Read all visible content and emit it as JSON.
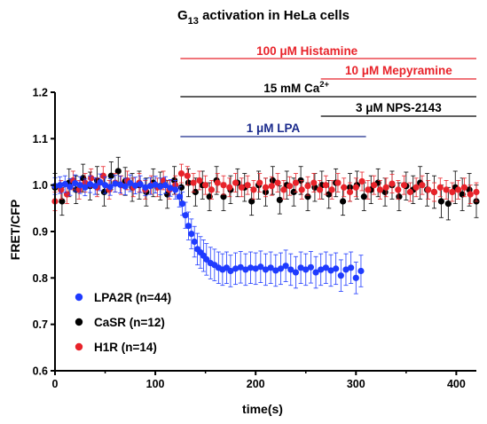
{
  "chart_data": {
    "type": "scatter",
    "title": {
      "prefix": "G",
      "subscript": "13",
      "suffix": " activation in HeLa cells"
    },
    "xlabel": "time(s)",
    "ylabel": "FRET/CFP",
    "xlim": [
      0,
      420
    ],
    "ylim": [
      0.6,
      1.2
    ],
    "x_ticks": [
      0,
      100,
      200,
      300,
      400
    ],
    "y_ticks": [
      0.6,
      0.7,
      0.8,
      0.9,
      1.0,
      1.1,
      1.2
    ],
    "y_tick_labels": [
      "0.6",
      "0.7",
      "0.8",
      "0.9",
      "1.0",
      "1.1",
      "1.2"
    ],
    "grid": false,
    "legend_position": "bottom-left",
    "annotations": [
      {
        "text": "100 μM Histamine",
        "color": "#e8232a",
        "x_start": 125,
        "x_end": 420
      },
      {
        "text": "10 μM Mepyramine",
        "color": "#e8232a",
        "x_start": 265,
        "x_end": 420
      },
      {
        "text_main": "15 mM Ca",
        "text_sup": "2+",
        "color": "#000000",
        "x_start": 125,
        "x_end": 420
      },
      {
        "text": "3 μM NPS-2143",
        "color": "#000000",
        "x_start": 265,
        "x_end": 420
      },
      {
        "text": "1 μM LPA",
        "color": "#1a2a8c",
        "x_start": 125,
        "x_end": 310
      }
    ],
    "series": [
      {
        "name": "LPA2R (n=44)",
        "color": "#1f3bff",
        "x": [
          0,
          5,
          10,
          15,
          20,
          25,
          30,
          35,
          40,
          45,
          50,
          55,
          60,
          65,
          70,
          75,
          80,
          85,
          90,
          95,
          100,
          105,
          110,
          115,
          120,
          124,
          127,
          130,
          133,
          136,
          139,
          142,
          145,
          148,
          151,
          155,
          159,
          163,
          167,
          171,
          175,
          180,
          185,
          190,
          195,
          200,
          205,
          210,
          215,
          220,
          225,
          230,
          235,
          240,
          245,
          250,
          255,
          260,
          265,
          270,
          275,
          280,
          285,
          290,
          295,
          300,
          305
        ],
        "y": [
          0.998,
          1.0,
          1.002,
          0.996,
          1.004,
          1.0,
          0.995,
          1.002,
          0.998,
          1.006,
          1.0,
          0.996,
          1.003,
          1.001,
          0.997,
          1.004,
          0.999,
          1.002,
          0.995,
          0.998,
          1.001,
          0.997,
          1.0,
          0.994,
          0.99,
          0.975,
          0.96,
          0.935,
          0.912,
          0.895,
          0.878,
          0.862,
          0.855,
          0.848,
          0.84,
          0.832,
          0.828,
          0.822,
          0.818,
          0.822,
          0.815,
          0.82,
          0.823,
          0.818,
          0.822,
          0.82,
          0.824,
          0.818,
          0.822,
          0.816,
          0.82,
          0.826,
          0.818,
          0.812,
          0.822,
          0.818,
          0.823,
          0.812,
          0.818,
          0.822,
          0.816,
          0.82,
          0.805,
          0.818,
          0.822,
          0.8,
          0.815
        ],
        "err": [
          0.018,
          0.018,
          0.018,
          0.018,
          0.018,
          0.018,
          0.018,
          0.018,
          0.018,
          0.018,
          0.018,
          0.018,
          0.018,
          0.018,
          0.018,
          0.018,
          0.018,
          0.018,
          0.018,
          0.018,
          0.018,
          0.018,
          0.018,
          0.018,
          0.02,
          0.022,
          0.025,
          0.028,
          0.03,
          0.032,
          0.033,
          0.034,
          0.034,
          0.034,
          0.034,
          0.034,
          0.034,
          0.034,
          0.034,
          0.034,
          0.034,
          0.034,
          0.034,
          0.034,
          0.034,
          0.034,
          0.034,
          0.034,
          0.034,
          0.034,
          0.034,
          0.034,
          0.034,
          0.034,
          0.034,
          0.034,
          0.034,
          0.034,
          0.034,
          0.034,
          0.034,
          0.034,
          0.034,
          0.034,
          0.034,
          0.034,
          0.034
        ]
      },
      {
        "name": "CaSR (n=12)",
        "color": "#000000",
        "x": [
          0,
          7,
          14,
          21,
          28,
          35,
          42,
          49,
          56,
          63,
          70,
          77,
          84,
          91,
          98,
          105,
          112,
          119,
          126,
          133,
          140,
          147,
          154,
          161,
          168,
          175,
          182,
          189,
          196,
          203,
          210,
          217,
          224,
          231,
          238,
          245,
          252,
          259,
          266,
          273,
          280,
          287,
          294,
          301,
          308,
          315,
          322,
          329,
          336,
          343,
          350,
          357,
          364,
          371,
          378,
          385,
          392,
          399,
          406,
          413,
          420
        ],
        "y": [
          0.995,
          0.965,
          1.005,
          0.99,
          1.015,
          0.998,
          1.01,
          0.985,
          1.02,
          1.03,
          1.008,
          0.995,
          1.0,
          0.985,
          1.005,
          0.998,
          0.98,
          1.01,
          0.995,
          1.005,
          0.985,
          1.0,
          0.975,
          1.01,
          0.975,
          0.99,
          1.005,
          0.995,
          0.965,
          1.0,
          0.985,
          1.01,
          0.968,
          1.0,
          0.985,
          1.01,
          0.975,
          0.995,
          1.0,
          0.98,
          1.005,
          0.965,
          0.995,
          1.0,
          0.975,
          0.99,
          1.005,
          0.985,
          1.0,
          0.975,
          0.998,
          0.99,
          1.005,
          0.99,
          0.985,
          0.965,
          0.96,
          0.995,
          0.98,
          0.99,
          0.965
        ],
        "err": [
          0.03,
          0.03,
          0.03,
          0.03,
          0.03,
          0.03,
          0.03,
          0.03,
          0.03,
          0.03,
          0.03,
          0.03,
          0.03,
          0.03,
          0.03,
          0.03,
          0.03,
          0.03,
          0.03,
          0.03,
          0.03,
          0.03,
          0.03,
          0.03,
          0.03,
          0.03,
          0.03,
          0.03,
          0.03,
          0.03,
          0.03,
          0.03,
          0.03,
          0.03,
          0.03,
          0.03,
          0.03,
          0.03,
          0.03,
          0.03,
          0.03,
          0.03,
          0.03,
          0.03,
          0.03,
          0.03,
          0.03,
          0.03,
          0.03,
          0.03,
          0.03,
          0.03,
          0.035,
          0.035,
          0.035,
          0.035,
          0.035,
          0.035,
          0.035,
          0.035,
          0.035
        ]
      },
      {
        "name": "H1R (n=14)",
        "color": "#e8232a",
        "x": [
          0,
          6,
          12,
          18,
          24,
          30,
          36,
          42,
          48,
          54,
          60,
          66,
          72,
          78,
          84,
          90,
          96,
          102,
          108,
          114,
          120,
          126,
          132,
          138,
          144,
          150,
          156,
          162,
          168,
          174,
          180,
          186,
          192,
          198,
          204,
          210,
          216,
          222,
          228,
          234,
          240,
          246,
          252,
          258,
          264,
          270,
          276,
          282,
          288,
          294,
          300,
          306,
          312,
          318,
          324,
          330,
          336,
          342,
          348,
          354,
          360,
          366,
          372,
          378,
          384,
          390,
          396,
          402,
          408,
          414,
          420
        ],
        "y": [
          0.965,
          0.99,
          0.98,
          1.01,
          0.99,
          1.005,
          1.015,
          0.995,
          1.02,
          0.99,
          1.005,
          1.0,
          1.01,
          0.995,
          1.005,
          0.99,
          1.0,
          0.995,
          1.01,
          0.99,
          1.0,
          1.025,
          1.02,
          1.005,
          1.01,
          1.0,
          0.99,
          1.005,
          1.0,
          0.995,
          1.005,
          0.995,
          1.0,
          0.99,
          1.005,
          0.995,
          0.998,
          1.005,
          0.99,
          0.998,
          1.005,
          0.99,
          0.998,
          1.005,
          0.99,
          1.0,
          0.99,
          1.005,
          0.995,
          0.985,
          0.995,
          1.008,
          0.99,
          1.0,
          0.99,
          0.995,
          1.003,
          0.99,
          1.0,
          0.985,
          0.995,
          1.0,
          0.99,
          0.985,
          0.995,
          0.99,
          0.985,
          0.99,
          0.995,
          0.98,
          0.985
        ],
        "err": [
          0.02,
          0.02,
          0.02,
          0.02,
          0.02,
          0.02,
          0.02,
          0.02,
          0.02,
          0.02,
          0.02,
          0.02,
          0.02,
          0.02,
          0.02,
          0.02,
          0.02,
          0.02,
          0.02,
          0.02,
          0.02,
          0.02,
          0.02,
          0.02,
          0.02,
          0.02,
          0.02,
          0.02,
          0.02,
          0.02,
          0.02,
          0.02,
          0.02,
          0.02,
          0.02,
          0.02,
          0.02,
          0.02,
          0.02,
          0.02,
          0.02,
          0.02,
          0.02,
          0.02,
          0.02,
          0.02,
          0.02,
          0.02,
          0.02,
          0.02,
          0.02,
          0.02,
          0.02,
          0.02,
          0.02,
          0.02,
          0.02,
          0.02,
          0.02,
          0.02,
          0.02,
          0.02,
          0.02,
          0.02,
          0.02,
          0.02,
          0.02,
          0.02,
          0.02,
          0.02,
          0.02
        ]
      }
    ]
  }
}
